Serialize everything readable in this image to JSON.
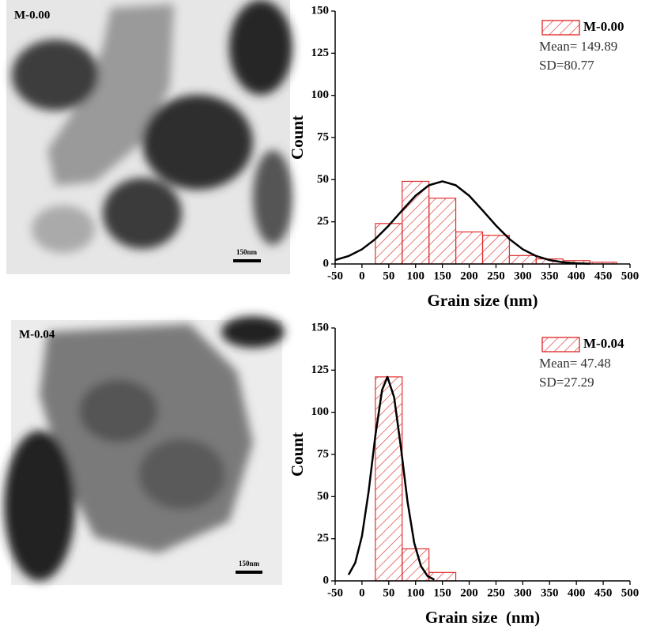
{
  "images": [
    {
      "label": "M-0.00",
      "scale_bar": "150nm"
    },
    {
      "label": "M-0.04",
      "scale_bar": "150nm"
    }
  ],
  "chart_data": [
    {
      "type": "histogram",
      "xlabel": "Grain size (nm)",
      "ylabel": "Count",
      "xlim": [
        -50,
        500
      ],
      "xticks": [
        -50,
        0,
        50,
        100,
        150,
        200,
        250,
        300,
        350,
        400,
        450,
        500
      ],
      "ylim": [
        0,
        150
      ],
      "yticks": [
        0,
        25,
        50,
        75,
        100,
        125,
        150
      ],
      "series": [
        {
          "name": "M-0.00",
          "color": "#e0302f",
          "bins": [
            25,
            75,
            125,
            175,
            225,
            275,
            325,
            375,
            425,
            475
          ],
          "values": [
            24,
            49,
            39,
            19,
            17,
            5,
            3,
            2,
            1
          ]
        }
      ],
      "fit": {
        "color": "#000000",
        "x": [
          -50,
          -25,
          0,
          25,
          50,
          75,
          100,
          125,
          150,
          175,
          200,
          225,
          250,
          275,
          300,
          325,
          350,
          375,
          400,
          425
        ],
        "values": [
          2.3,
          4.7,
          8.7,
          14.8,
          22.8,
          31.8,
          40.5,
          46.7,
          49,
          46.7,
          40.5,
          31.8,
          22.8,
          14.8,
          8.7,
          4.7,
          2.3,
          1.0,
          0.4,
          0.1
        ]
      },
      "annotations": [
        "Mean= 149.89",
        "SD=80.77"
      ]
    },
    {
      "type": "histogram",
      "xlabel": "Grain size  (nm)",
      "ylabel": "Count",
      "xlim": [
        -50,
        500
      ],
      "xticks": [
        -50,
        0,
        50,
        100,
        150,
        200,
        250,
        300,
        350,
        400,
        450,
        500
      ],
      "ylim": [
        0,
        150
      ],
      "yticks": [
        0,
        25,
        50,
        75,
        100,
        125,
        150
      ],
      "series": [
        {
          "name": "M-0.04",
          "color": "#e0302f",
          "bins": [
            25,
            75,
            125,
            175
          ],
          "values": [
            121,
            19,
            5
          ]
        }
      ],
      "fit": {
        "color": "#000000",
        "x": [
          -25,
          -12.5,
          0,
          12.5,
          25,
          37.5,
          47.5,
          60,
          72.5,
          85,
          97.5,
          110,
          122.5,
          135
        ],
        "values": [
          3.6,
          10.8,
          26.6,
          53.2,
          86.2,
          113.2,
          121,
          108.9,
          79.5,
          47.0,
          22.5,
          8.8,
          2.8,
          0.7
        ]
      },
      "annotations": [
        "Mean= 47.48",
        "SD=27.29"
      ]
    }
  ]
}
